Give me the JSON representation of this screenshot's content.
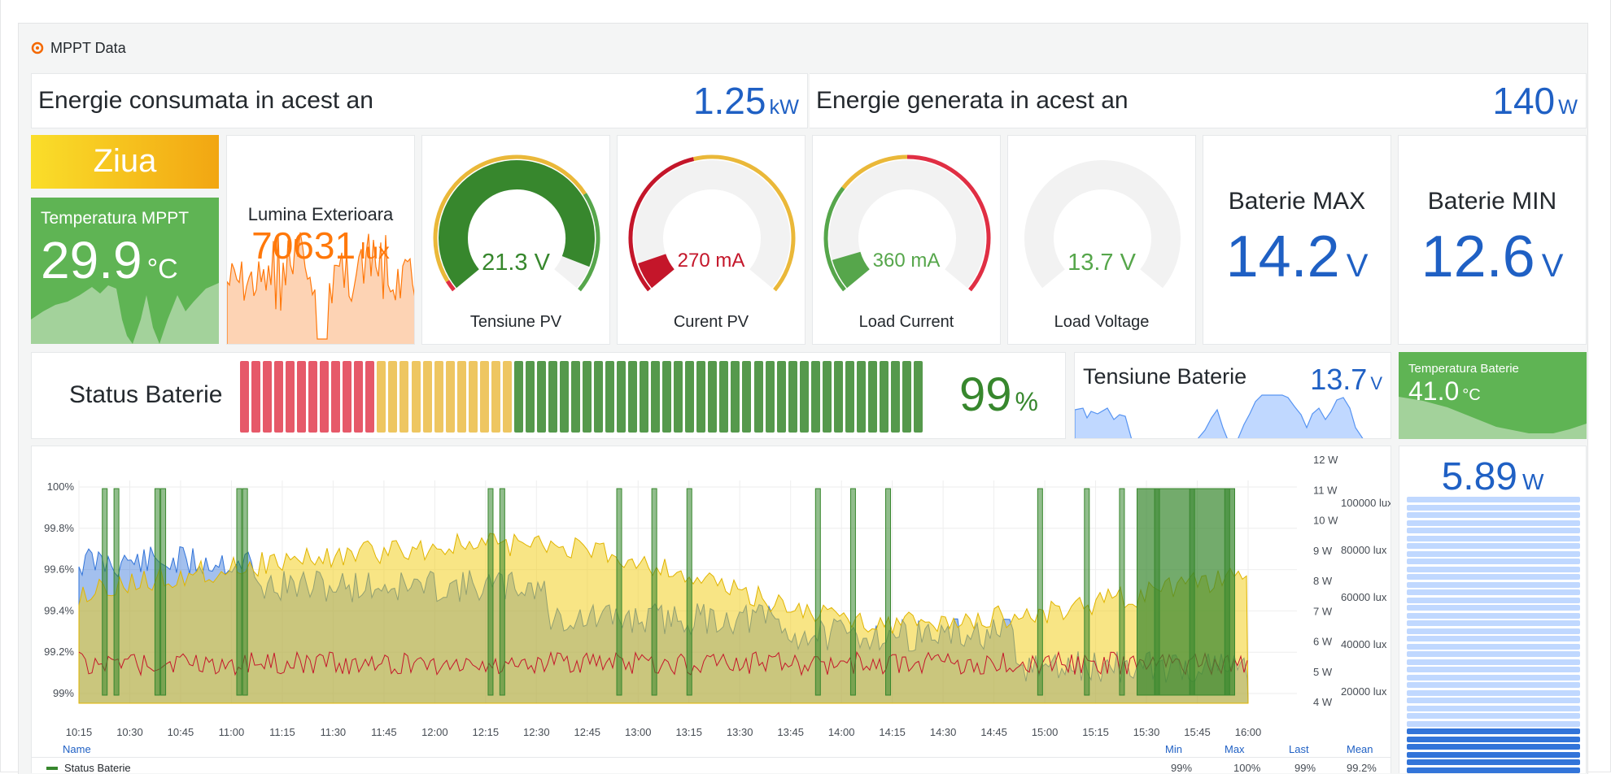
{
  "dashboard": {
    "title": "MPPT Data",
    "logo": "grafana-logo-icon"
  },
  "row1": {
    "consumed": {
      "label": "Energie consumata in acest an",
      "value": "1.25",
      "unit": "kW"
    },
    "generated": {
      "label": "Energie generata in acest an",
      "value": "140",
      "unit": "W"
    }
  },
  "row2": {
    "day": {
      "label": "Ziua"
    },
    "temp_mppt": {
      "label": "Temperatura MPPT",
      "value": "29.9",
      "unit": "°C"
    },
    "light": {
      "label": "Lumina Exterioara",
      "value": "70631",
      "unit": "lux"
    },
    "gauges": [
      {
        "label": "Tensiune PV",
        "value": "21.3 V",
        "fraction": 0.93,
        "color": "#37872d"
      },
      {
        "label": "Curent PV",
        "value": "270 mA",
        "fraction": 0.08,
        "color": "#c4162a"
      },
      {
        "label": "Load Current",
        "value": "360 mA",
        "fraction": 0.09,
        "color": "#56a64b"
      },
      {
        "label": "Load Voltage",
        "value": "13.7 V",
        "fraction": 0.0,
        "color": "#56a64b"
      }
    ],
    "bat_max": {
      "label": "Baterie MAX",
      "value": "14.2",
      "unit": "V"
    },
    "bat_min": {
      "label": "Baterie MIN",
      "value": "12.6",
      "unit": "V"
    }
  },
  "row3": {
    "status": {
      "label": "Status Baterie",
      "value": "99",
      "unit": "%"
    },
    "tensiune": {
      "label": "Tensiune Baterie",
      "value": "13.7",
      "unit": "V"
    },
    "temp_bat": {
      "label": "Temperatura Baterie",
      "value": "41.0",
      "unit": "°C"
    }
  },
  "chart_data": {
    "type": "area",
    "x_ticks": [
      "10:15",
      "10:30",
      "10:45",
      "11:00",
      "11:15",
      "11:30",
      "11:45",
      "12:00",
      "12:15",
      "12:30",
      "12:45",
      "13:00",
      "13:15",
      "13:30",
      "13:45",
      "14:00",
      "14:15",
      "14:30",
      "14:45",
      "15:00",
      "15:15",
      "15:30",
      "15:45",
      "16:00"
    ],
    "y_left_ticks": [
      "100%",
      "99.8%",
      "99.6%",
      "99.4%",
      "99.2%",
      "99%"
    ],
    "y_right_w_ticks": [
      "12 W",
      "11 W",
      "10 W",
      "9 W",
      "8 W",
      "7 W",
      "6 W",
      "5 W",
      "4 W"
    ],
    "y_right_lux_ticks": [
      "100000 lux",
      "80000 lux",
      "60000 lux",
      "40000 lux",
      "20000 lux"
    ],
    "series": [
      {
        "name": "Status Baterie",
        "color": "#37872d"
      }
    ],
    "legend_headers": [
      "Name",
      "Min",
      "Max",
      "Last",
      "Mean"
    ],
    "legend_rows": [
      {
        "name": "Status Baterie",
        "min": "99%",
        "max": "100%",
        "last": "99%",
        "mean": "99.2%"
      }
    ]
  },
  "side_power": {
    "value": "5.89",
    "unit": "W"
  }
}
